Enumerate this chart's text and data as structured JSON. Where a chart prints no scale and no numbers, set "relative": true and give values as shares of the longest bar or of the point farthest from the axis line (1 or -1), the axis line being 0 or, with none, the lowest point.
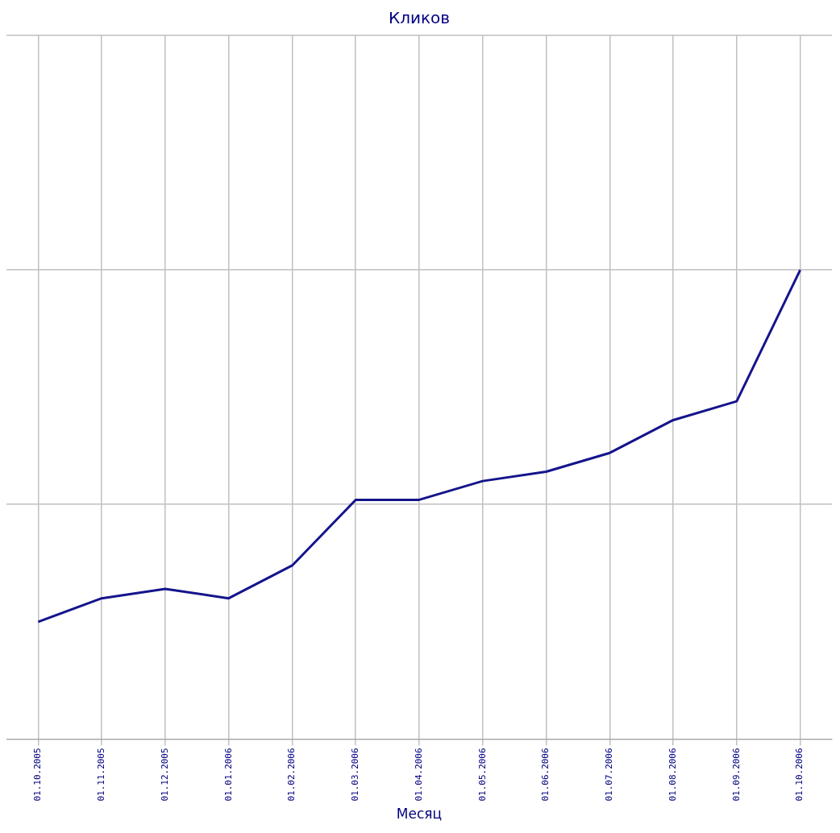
{
  "chart_data": {
    "type": "line",
    "title": "Кликов",
    "xlabel": "Месяц",
    "relative": true,
    "grid": true,
    "marker": "none",
    "line_style": "solid",
    "legend": false,
    "categories": [
      "01.10.2005",
      "01.11.2005",
      "01.12.2005",
      "01.01.2006",
      "01.02.2006",
      "01.03.2006",
      "01.04.2006",
      "01.05.2006",
      "01.06.2006",
      "01.07.2006",
      "01.08.2006",
      "01.09.2006",
      "01.10.2006"
    ],
    "series": [
      {
        "color": "#14148c",
        "values": [
          0.25,
          0.3,
          0.32,
          0.3,
          0.37,
          0.51,
          0.51,
          0.55,
          0.57,
          0.61,
          0.68,
          0.72,
          1
        ]
      }
    ]
  }
}
